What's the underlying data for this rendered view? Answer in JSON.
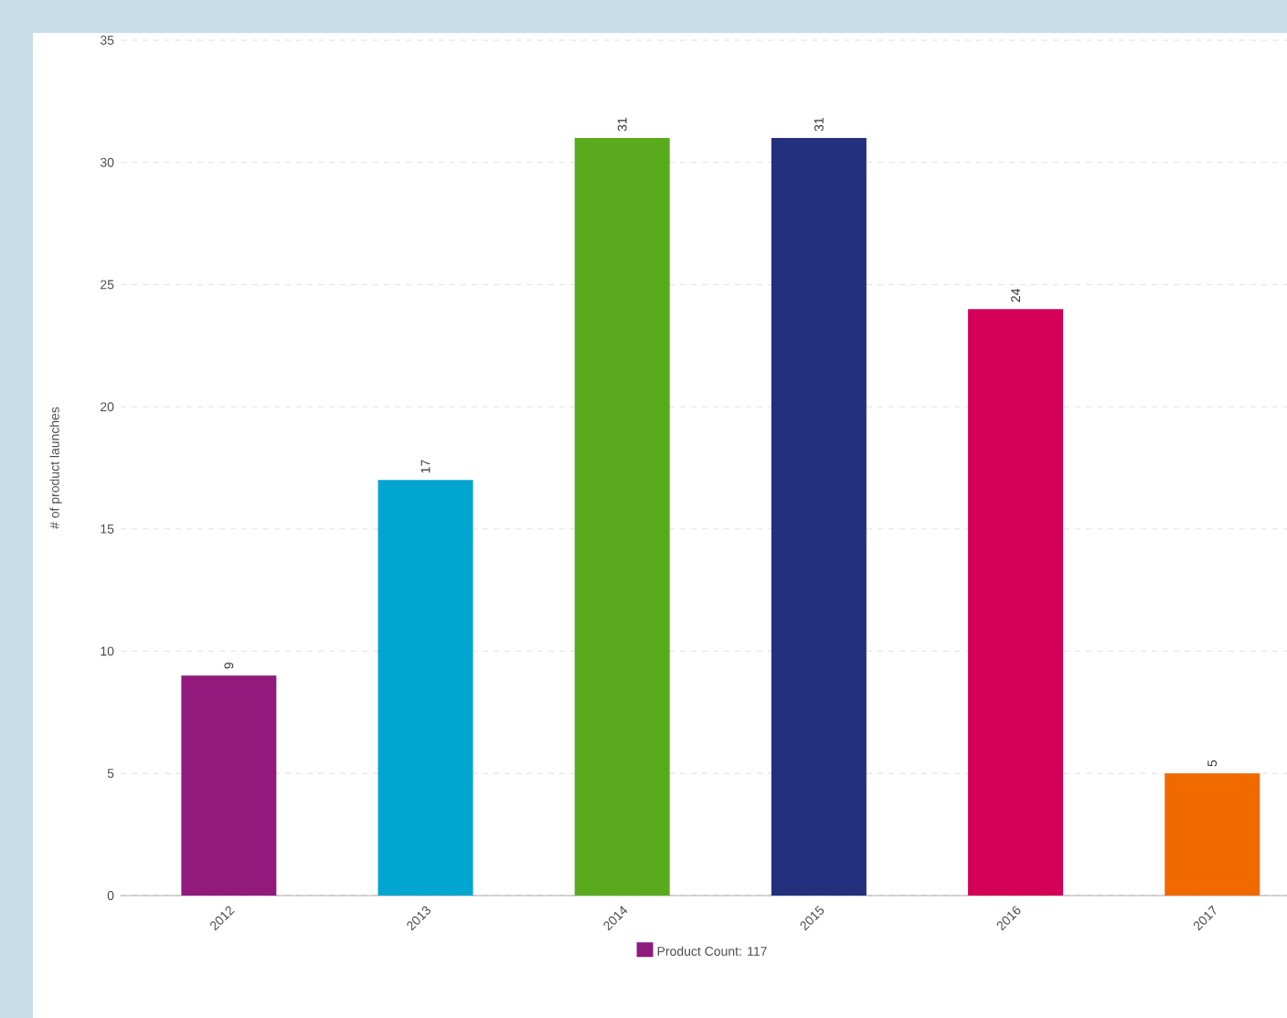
{
  "chart_data": {
    "type": "bar",
    "ylabel": "# of product launches",
    "categories": [
      "2012",
      "2013",
      "2014",
      "2015",
      "2016",
      "2017"
    ],
    "series": [
      {
        "name": "Product Count: 117",
        "color": "#8e1b7d",
        "colors": [
          "#921a7d",
          "#00a5d0",
          "#5aaa1e",
          "#22307e",
          "#d40057",
          "#f06a00"
        ],
        "values": [
          9,
          17,
          31,
          31,
          24,
          5
        ]
      }
    ],
    "ylim": [
      0,
      35
    ],
    "yticks": [
      0,
      5,
      10,
      15,
      20,
      25,
      30,
      35
    ],
    "grid": "y",
    "data_labels": true,
    "legend": "bottom"
  }
}
